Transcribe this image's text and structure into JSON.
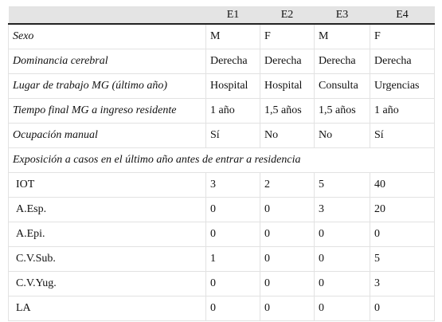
{
  "table": {
    "columns": [
      "E1",
      "E2",
      "E3",
      "E4"
    ],
    "rows": [
      {
        "label": "Sexo",
        "cells": [
          "M",
          "F",
          "M",
          "F"
        ]
      },
      {
        "label": "Dominancia cerebral",
        "cells": [
          "Derecha",
          "Derecha",
          "Derecha",
          "Derecha"
        ]
      },
      {
        "label": "Lugar de trabajo MG (último año)",
        "cells": [
          "Hospital",
          "Hospital",
          "Consulta",
          "Urgencias"
        ]
      },
      {
        "label": "Tiempo final MG a ingreso residente",
        "cells": [
          "1 año",
          "1,5 años",
          "1,5 años",
          "1 año"
        ]
      },
      {
        "label": "Ocupación manual",
        "cells": [
          "Sí",
          "No",
          "No",
          "Sí"
        ]
      }
    ],
    "section": "Exposición a casos en el último año antes de entrar a residencia",
    "section_rows": [
      {
        "label": "IOT",
        "cells": [
          "3",
          "2",
          "5",
          "40"
        ]
      },
      {
        "label": "A.Esp.",
        "cells": [
          "0",
          "0",
          "3",
          "20"
        ]
      },
      {
        "label": "A.Epi.",
        "cells": [
          "0",
          "0",
          "0",
          "0"
        ]
      },
      {
        "label": "C.V.Sub.",
        "cells": [
          "1",
          "0",
          "0",
          "5"
        ]
      },
      {
        "label": "C.V.Yug.",
        "cells": [
          "0",
          "0",
          "0",
          "3"
        ]
      },
      {
        "label": "LA",
        "cells": [
          "0",
          "0",
          "0",
          "0"
        ]
      }
    ]
  }
}
